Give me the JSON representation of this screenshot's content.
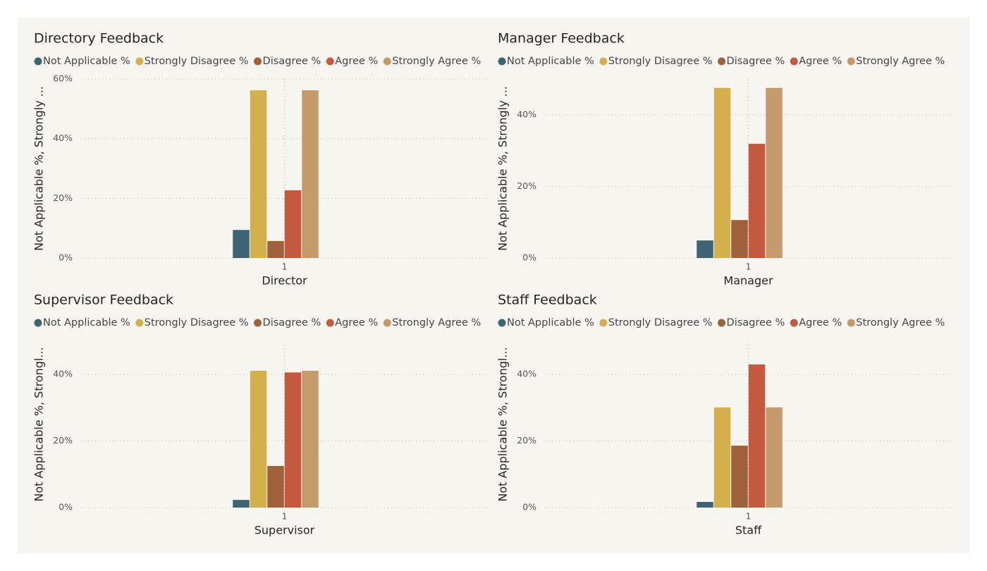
{
  "chart_data": [
    {
      "type": "bar",
      "title": "Directory Feedback",
      "categories": [
        "1"
      ],
      "x_label": "Director",
      "y_label": "Not Applicable %, Strongly ...",
      "series": [
        {
          "name": "Not Applicable %",
          "color": "#3d6472",
          "values": [
            9.4
          ]
        },
        {
          "name": "Strongly Disagree %",
          "color": "#d4b04a",
          "values": [
            56.2
          ]
        },
        {
          "name": "Disagree %",
          "color": "#a0613a",
          "values": [
            5.7
          ]
        },
        {
          "name": "Agree %",
          "color": "#c5593e",
          "values": [
            22.7
          ]
        },
        {
          "name": "Strongly Agree %",
          "color": "#c69b6a",
          "values": [
            56.2
          ]
        }
      ],
      "ylim": [
        0,
        60
      ],
      "yticks": [
        {
          "value": 0,
          "label": "0%"
        },
        {
          "value": 20,
          "label": "20%"
        },
        {
          "value": 40,
          "label": "40%"
        },
        {
          "value": 60,
          "label": "60%"
        }
      ],
      "grid": true,
      "legend": "top-left"
    },
    {
      "type": "bar",
      "title": "Manager Feedback",
      "categories": [
        "1"
      ],
      "x_label": "Manager",
      "y_label": "Not Applicable %, Strongly ...",
      "series": [
        {
          "name": "Not Applicable %",
          "color": "#3d6472",
          "values": [
            4.9
          ]
        },
        {
          "name": "Strongly Disagree %",
          "color": "#d4b04a",
          "values": [
            47.5
          ]
        },
        {
          "name": "Disagree %",
          "color": "#a0613a",
          "values": [
            10.6
          ]
        },
        {
          "name": "Agree %",
          "color": "#c5593e",
          "values": [
            31.9
          ]
        },
        {
          "name": "Strongly Agree %",
          "color": "#c69b6a",
          "values": [
            47.5
          ]
        }
      ],
      "ylim": [
        0,
        50
      ],
      "yticks": [
        {
          "value": 0,
          "label": "0%"
        },
        {
          "value": 20,
          "label": "20%"
        },
        {
          "value": 40,
          "label": "40%"
        }
      ],
      "grid": true,
      "legend": "top-left"
    },
    {
      "type": "bar",
      "title": "Supervisor Feedback",
      "categories": [
        "1"
      ],
      "x_label": "Supervisor",
      "y_label": "Not Applicable %, Strongl...",
      "series": [
        {
          "name": "Not Applicable %",
          "color": "#3d6472",
          "values": [
            2.3
          ]
        },
        {
          "name": "Strongly Disagree %",
          "color": "#d4b04a",
          "values": [
            41.1
          ]
        },
        {
          "name": "Disagree %",
          "color": "#a0613a",
          "values": [
            12.5
          ]
        },
        {
          "name": "Agree %",
          "color": "#c5593e",
          "values": [
            40.6
          ]
        },
        {
          "name": "Strongly Agree %",
          "color": "#c69b6a",
          "values": [
            41.1
          ]
        }
      ],
      "ylim": [
        0,
        50
      ],
      "yticks": [
        {
          "value": 0,
          "label": "0%"
        },
        {
          "value": 20,
          "label": "20%"
        },
        {
          "value": 40,
          "label": "40%"
        }
      ],
      "grid": true,
      "legend": "top-left"
    },
    {
      "type": "bar",
      "title": "Staff Feedback",
      "categories": [
        "1"
      ],
      "x_label": "Staff",
      "y_label": "Not Applicable %, Strongl...",
      "series": [
        {
          "name": "Not Applicable %",
          "color": "#3d6472",
          "values": [
            1.7
          ]
        },
        {
          "name": "Strongly Disagree %",
          "color": "#d4b04a",
          "values": [
            30.1
          ]
        },
        {
          "name": "Disagree %",
          "color": "#a0613a",
          "values": [
            18.6
          ]
        },
        {
          "name": "Agree %",
          "color": "#c5593e",
          "values": [
            43.0
          ]
        },
        {
          "name": "Strongly Agree %",
          "color": "#c69b6a",
          "values": [
            30.1
          ]
        }
      ],
      "ylim": [
        0,
        50
      ],
      "yticks": [
        {
          "value": 0,
          "label": "0%"
        },
        {
          "value": 20,
          "label": "20%"
        },
        {
          "value": 40,
          "label": "40%"
        }
      ],
      "grid": true,
      "legend": "top-left"
    }
  ]
}
